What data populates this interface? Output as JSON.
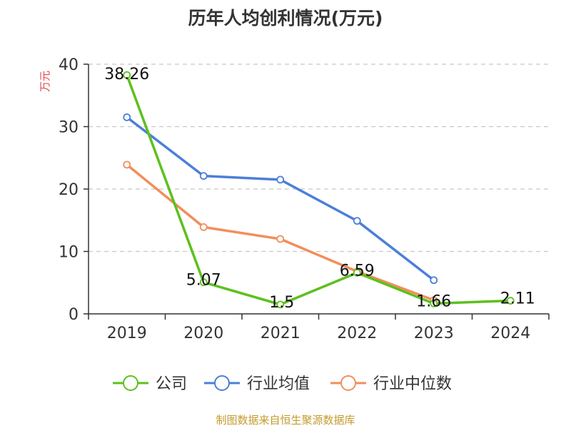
{
  "chart_data": {
    "type": "line",
    "title": "历年人均创利情况(万元)",
    "ylabel": "万元",
    "categories": [
      "2019",
      "2020",
      "2021",
      "2022",
      "2023",
      "2024"
    ],
    "ylim": [
      0,
      40
    ],
    "yticks": [
      0,
      10,
      20,
      30,
      40
    ],
    "grid": true,
    "legend_position": "bottom",
    "series": [
      {
        "name": "公司",
        "color": "#5dc01e",
        "values": [
          38.26,
          5.07,
          1.5,
          6.59,
          1.66,
          2.11
        ],
        "labels": [
          "38.26",
          "5.07",
          "1.5",
          "6.59",
          "1.66",
          "2.11"
        ]
      },
      {
        "name": "行业均值",
        "color": "#4b7fd9",
        "values": [
          31.5,
          22.1,
          21.5,
          14.9,
          5.4,
          null
        ]
      },
      {
        "name": "行业中位数",
        "color": "#f28e5c",
        "values": [
          23.9,
          13.9,
          12.0,
          6.8,
          2.2,
          null
        ]
      }
    ]
  },
  "footer": "制图数据来自恒生聚源数据库"
}
